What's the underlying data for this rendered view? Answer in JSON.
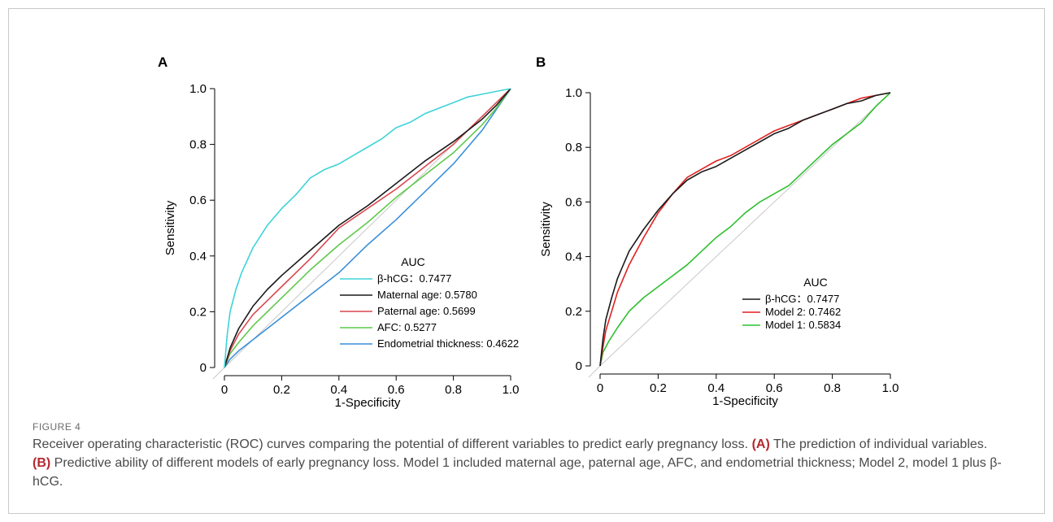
{
  "panels": [
    {
      "id": "A",
      "chart_data": {
        "type": "line",
        "xlabel": "1-Specificity",
        "ylabel": "Sensitivity",
        "xlim": [
          0,
          1
        ],
        "ylim": [
          0,
          1
        ],
        "x_ticks": [
          "0",
          "0.2",
          "0.4",
          "0.6",
          "0.8",
          "1.0"
        ],
        "y_ticks": [
          "0",
          "0.2",
          "0.4",
          "0.6",
          "0.8",
          "1.0"
        ],
        "reference_line": "diagonal",
        "legend_title": "AUC",
        "legend_position": "bottom-right",
        "series": [
          {
            "name": "β-hCG：0.7477",
            "color": "#3fd3d9",
            "points": [
              [
                0,
                0
              ],
              [
                0.01,
                0.12
              ],
              [
                0.02,
                0.2
              ],
              [
                0.04,
                0.28
              ],
              [
                0.06,
                0.34
              ],
              [
                0.1,
                0.43
              ],
              [
                0.15,
                0.51
              ],
              [
                0.2,
                0.57
              ],
              [
                0.25,
                0.62
              ],
              [
                0.3,
                0.68
              ],
              [
                0.35,
                0.71
              ],
              [
                0.4,
                0.73
              ],
              [
                0.45,
                0.76
              ],
              [
                0.5,
                0.79
              ],
              [
                0.55,
                0.82
              ],
              [
                0.6,
                0.86
              ],
              [
                0.65,
                0.88
              ],
              [
                0.7,
                0.91
              ],
              [
                0.75,
                0.93
              ],
              [
                0.8,
                0.95
              ],
              [
                0.85,
                0.97
              ],
              [
                0.9,
                0.98
              ],
              [
                0.95,
                0.99
              ],
              [
                1,
                1
              ]
            ]
          },
          {
            "name": "Maternal age: 0.5780",
            "color": "#1a1a1a",
            "points": [
              [
                0,
                0
              ],
              [
                0.02,
                0.07
              ],
              [
                0.05,
                0.14
              ],
              [
                0.1,
                0.22
              ],
              [
                0.15,
                0.28
              ],
              [
                0.2,
                0.33
              ],
              [
                0.3,
                0.42
              ],
              [
                0.4,
                0.51
              ],
              [
                0.5,
                0.58
              ],
              [
                0.6,
                0.66
              ],
              [
                0.7,
                0.74
              ],
              [
                0.8,
                0.81
              ],
              [
                0.9,
                0.89
              ],
              [
                0.95,
                0.94
              ],
              [
                1,
                1
              ]
            ]
          },
          {
            "name": "Paternal age: 0.5699",
            "color": "#d9474f",
            "points": [
              [
                0,
                0
              ],
              [
                0.02,
                0.06
              ],
              [
                0.05,
                0.12
              ],
              [
                0.1,
                0.19
              ],
              [
                0.15,
                0.24
              ],
              [
                0.2,
                0.29
              ],
              [
                0.3,
                0.39
              ],
              [
                0.4,
                0.5
              ],
              [
                0.5,
                0.57
              ],
              [
                0.6,
                0.64
              ],
              [
                0.7,
                0.72
              ],
              [
                0.8,
                0.8
              ],
              [
                0.9,
                0.9
              ],
              [
                0.95,
                0.95
              ],
              [
                1,
                1
              ]
            ]
          },
          {
            "name": "AFC: 0.5277",
            "color": "#5fc94b",
            "points": [
              [
                0,
                0
              ],
              [
                0.02,
                0.05
              ],
              [
                0.05,
                0.09
              ],
              [
                0.1,
                0.15
              ],
              [
                0.15,
                0.2
              ],
              [
                0.2,
                0.25
              ],
              [
                0.3,
                0.35
              ],
              [
                0.4,
                0.44
              ],
              [
                0.5,
                0.52
              ],
              [
                0.6,
                0.61
              ],
              [
                0.7,
                0.69
              ],
              [
                0.8,
                0.77
              ],
              [
                0.9,
                0.87
              ],
              [
                0.95,
                0.93
              ],
              [
                1,
                1
              ]
            ]
          },
          {
            "name": "Endometrial thickness: 0.4622",
            "color": "#3b8fd9",
            "points": [
              [
                0,
                0
              ],
              [
                0.02,
                0.03
              ],
              [
                0.05,
                0.06
              ],
              [
                0.1,
                0.1
              ],
              [
                0.2,
                0.18
              ],
              [
                0.3,
                0.26
              ],
              [
                0.4,
                0.34
              ],
              [
                0.5,
                0.44
              ],
              [
                0.6,
                0.53
              ],
              [
                0.7,
                0.63
              ],
              [
                0.8,
                0.73
              ],
              [
                0.9,
                0.85
              ],
              [
                1,
                1
              ]
            ]
          }
        ]
      }
    },
    {
      "id": "B",
      "chart_data": {
        "type": "line",
        "xlabel": "1-Specificity",
        "ylabel": "Sensitivity",
        "xlim": [
          0,
          1
        ],
        "ylim": [
          0,
          1
        ],
        "x_ticks": [
          "0",
          "0.2",
          "0.4",
          "0.6",
          "0.8",
          "1.0"
        ],
        "y_ticks": [
          "0",
          "0.2",
          "0.4",
          "0.6",
          "0.8",
          "1.0"
        ],
        "reference_line": "diagonal",
        "legend_title": "AUC",
        "legend_position": "bottom-right",
        "series": [
          {
            "name": "β-hCG：0.7477",
            "color": "#1a1a1a",
            "points": [
              [
                0,
                0
              ],
              [
                0.01,
                0.1
              ],
              [
                0.02,
                0.17
              ],
              [
                0.04,
                0.25
              ],
              [
                0.06,
                0.32
              ],
              [
                0.1,
                0.42
              ],
              [
                0.15,
                0.5
              ],
              [
                0.2,
                0.57
              ],
              [
                0.25,
                0.63
              ],
              [
                0.3,
                0.68
              ],
              [
                0.35,
                0.71
              ],
              [
                0.4,
                0.73
              ],
              [
                0.45,
                0.76
              ],
              [
                0.5,
                0.79
              ],
              [
                0.55,
                0.82
              ],
              [
                0.6,
                0.85
              ],
              [
                0.65,
                0.87
              ],
              [
                0.7,
                0.9
              ],
              [
                0.75,
                0.92
              ],
              [
                0.8,
                0.94
              ],
              [
                0.85,
                0.96
              ],
              [
                0.9,
                0.97
              ],
              [
                0.95,
                0.99
              ],
              [
                1,
                1
              ]
            ]
          },
          {
            "name": "Model 2: 0.7462",
            "color": "#e02020",
            "points": [
              [
                0,
                0
              ],
              [
                0.01,
                0.07
              ],
              [
                0.02,
                0.13
              ],
              [
                0.04,
                0.2
              ],
              [
                0.06,
                0.27
              ],
              [
                0.1,
                0.37
              ],
              [
                0.15,
                0.47
              ],
              [
                0.2,
                0.56
              ],
              [
                0.25,
                0.63
              ],
              [
                0.3,
                0.69
              ],
              [
                0.35,
                0.72
              ],
              [
                0.4,
                0.75
              ],
              [
                0.45,
                0.77
              ],
              [
                0.5,
                0.8
              ],
              [
                0.55,
                0.83
              ],
              [
                0.6,
                0.86
              ],
              [
                0.65,
                0.88
              ],
              [
                0.7,
                0.9
              ],
              [
                0.75,
                0.92
              ],
              [
                0.8,
                0.94
              ],
              [
                0.85,
                0.96
              ],
              [
                0.9,
                0.98
              ],
              [
                0.95,
                0.99
              ],
              [
                1,
                1
              ]
            ]
          },
          {
            "name": "Model 1: 0.5834",
            "color": "#2fbf2f",
            "points": [
              [
                0,
                0
              ],
              [
                0.01,
                0.05
              ],
              [
                0.03,
                0.09
              ],
              [
                0.06,
                0.14
              ],
              [
                0.1,
                0.2
              ],
              [
                0.15,
                0.25
              ],
              [
                0.2,
                0.29
              ],
              [
                0.25,
                0.33
              ],
              [
                0.3,
                0.37
              ],
              [
                0.35,
                0.42
              ],
              [
                0.4,
                0.47
              ],
              [
                0.45,
                0.51
              ],
              [
                0.5,
                0.56
              ],
              [
                0.55,
                0.6
              ],
              [
                0.6,
                0.63
              ],
              [
                0.65,
                0.66
              ],
              [
                0.7,
                0.71
              ],
              [
                0.75,
                0.76
              ],
              [
                0.8,
                0.81
              ],
              [
                0.85,
                0.85
              ],
              [
                0.9,
                0.89
              ],
              [
                0.95,
                0.95
              ],
              [
                1,
                1
              ]
            ]
          }
        ]
      }
    }
  ],
  "caption": {
    "label": "FIGURE 4",
    "line1_pre": "Receiver operating characteristic (ROC) curves comparing the potential of different variables to predict early pregnancy loss.",
    "tag_a": "(A)",
    "line1_a": "The prediction of individual variables.",
    "tag_b": "(B)",
    "line1_b": "Predictive ability of different models of early pregnancy loss. Model 1 included maternal age, paternal age, AFC, and endometrial thickness; Model 2, model 1 plus β-hCG."
  },
  "colors": {
    "reference_line": "#c8c8c8",
    "axis": "#000000"
  }
}
